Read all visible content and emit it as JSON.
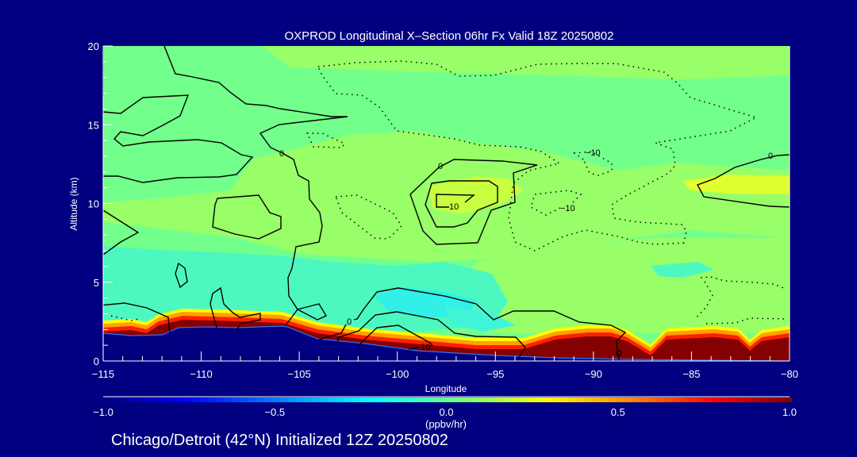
{
  "chart_data": {
    "type": "heatmap",
    "title": "OXPROD Longitudinal X–Section 06hr  Fx Valid 18Z 20250802",
    "xlabel": "Longitude",
    "ylabel": "Altitude (km)",
    "xlim": [
      -115,
      -80
    ],
    "ylim": [
      0,
      20
    ],
    "xticks": [
      -115,
      -110,
      -105,
      -100,
      -95,
      -90,
      -85,
      -80
    ],
    "xtick_labels": [
      "−115",
      "−110",
      "−105",
      "−100",
      "−95",
      "−90",
      "−85",
      "−80"
    ],
    "yticks": [
      0,
      5,
      10,
      15,
      20
    ],
    "ytick_labels": [
      "0",
      "5",
      "10",
      "15",
      "20"
    ],
    "grid": false,
    "colorbar": {
      "range": [
        -1.0,
        1.0
      ],
      "ticks": [
        -1.0,
        -0.5,
        0.0,
        0.5,
        1.0
      ],
      "tick_labels": [
        "−1.0",
        "−0.5",
        "0.0",
        "0.5",
        "1.0"
      ],
      "units": "(ppbv/hr)",
      "colors": [
        "#00007f",
        "#0000ff",
        "#00ffff",
        "#90ff60",
        "#ffff00",
        "#ff8000",
        "#ff0000",
        "#7f0000"
      ]
    },
    "contour_labels": {
      "zero_a": "0",
      "zero_b": "0",
      "zero_c": "0",
      "zero_d": "0",
      "ten_a": "10",
      "ten_b": "10",
      "neg_a": "−10",
      "neg_b": "−10"
    },
    "footer": "Chicago/Detroit (42°N) Initialized 12Z 20250802"
  }
}
